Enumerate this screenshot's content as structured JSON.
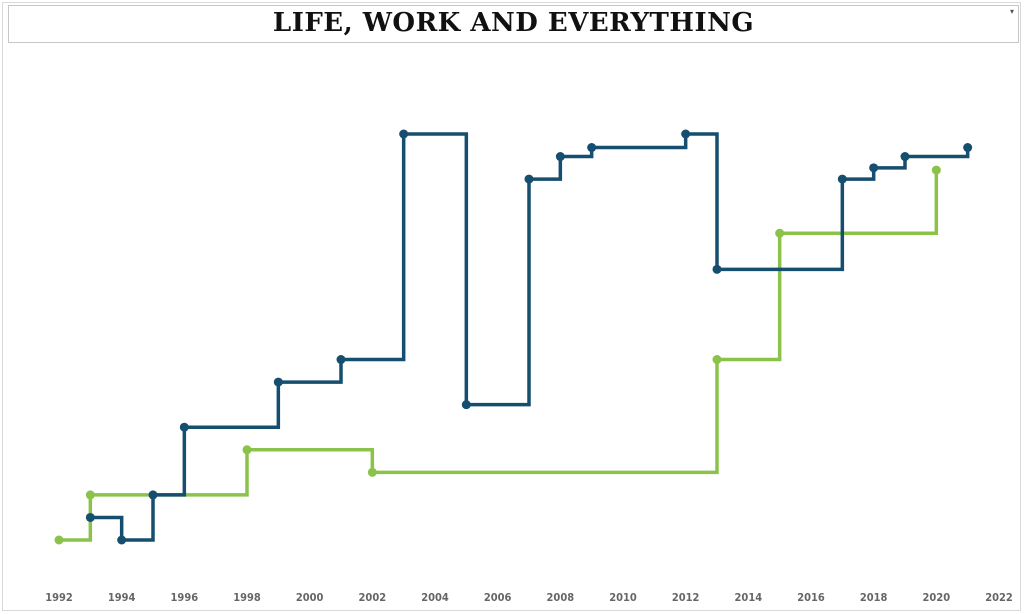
{
  "chart_data": {
    "type": "line",
    "step": true,
    "title": "LIFE, WORK AND EVERYTHING",
    "xlabel": "",
    "ylabel": "",
    "xlim": [
      1992,
      2022
    ],
    "xticks": [
      1992,
      1994,
      1996,
      1998,
      2000,
      2002,
      2004,
      2006,
      2008,
      2010,
      2012,
      2014,
      2016,
      2018,
      2020,
      2022
    ],
    "yaxis_visible": false,
    "grid": false,
    "series": [
      {
        "color": "#154e6e",
        "points": [
          {
            "x": 1993,
            "y": 1.0
          },
          {
            "x": 1994,
            "y": 0.0
          },
          {
            "x": 1995,
            "y": 2.0
          },
          {
            "x": 1996,
            "y": 5.0
          },
          {
            "x": 1999,
            "y": 7.0
          },
          {
            "x": 2001,
            "y": 8.0
          },
          {
            "x": 2003,
            "y": 18.0
          },
          {
            "x": 2005,
            "y": 6.0
          },
          {
            "x": 2007,
            "y": 16.0
          },
          {
            "x": 2008,
            "y": 17.0
          },
          {
            "x": 2009,
            "y": 17.4
          },
          {
            "x": 2012,
            "y": 18.0
          },
          {
            "x": 2013,
            "y": 12.0
          },
          {
            "x": 2017,
            "y": 16.0
          },
          {
            "x": 2018,
            "y": 16.5
          },
          {
            "x": 2019,
            "y": 17.0
          },
          {
            "x": 2021,
            "y": 17.4
          }
        ],
        "end_marker": true
      },
      {
        "color": "#8bc34a",
        "points": [
          {
            "x": 1992,
            "y": 0.0
          },
          {
            "x": 1993,
            "y": 2.0
          },
          {
            "x": 1998,
            "y": 4.0
          },
          {
            "x": 2002,
            "y": 3.0
          },
          {
            "x": 2013,
            "y": 8.0
          },
          {
            "x": 2015,
            "y": 13.6
          },
          {
            "x": 2020,
            "y": 16.4
          }
        ],
        "end_marker": false
      }
    ]
  }
}
